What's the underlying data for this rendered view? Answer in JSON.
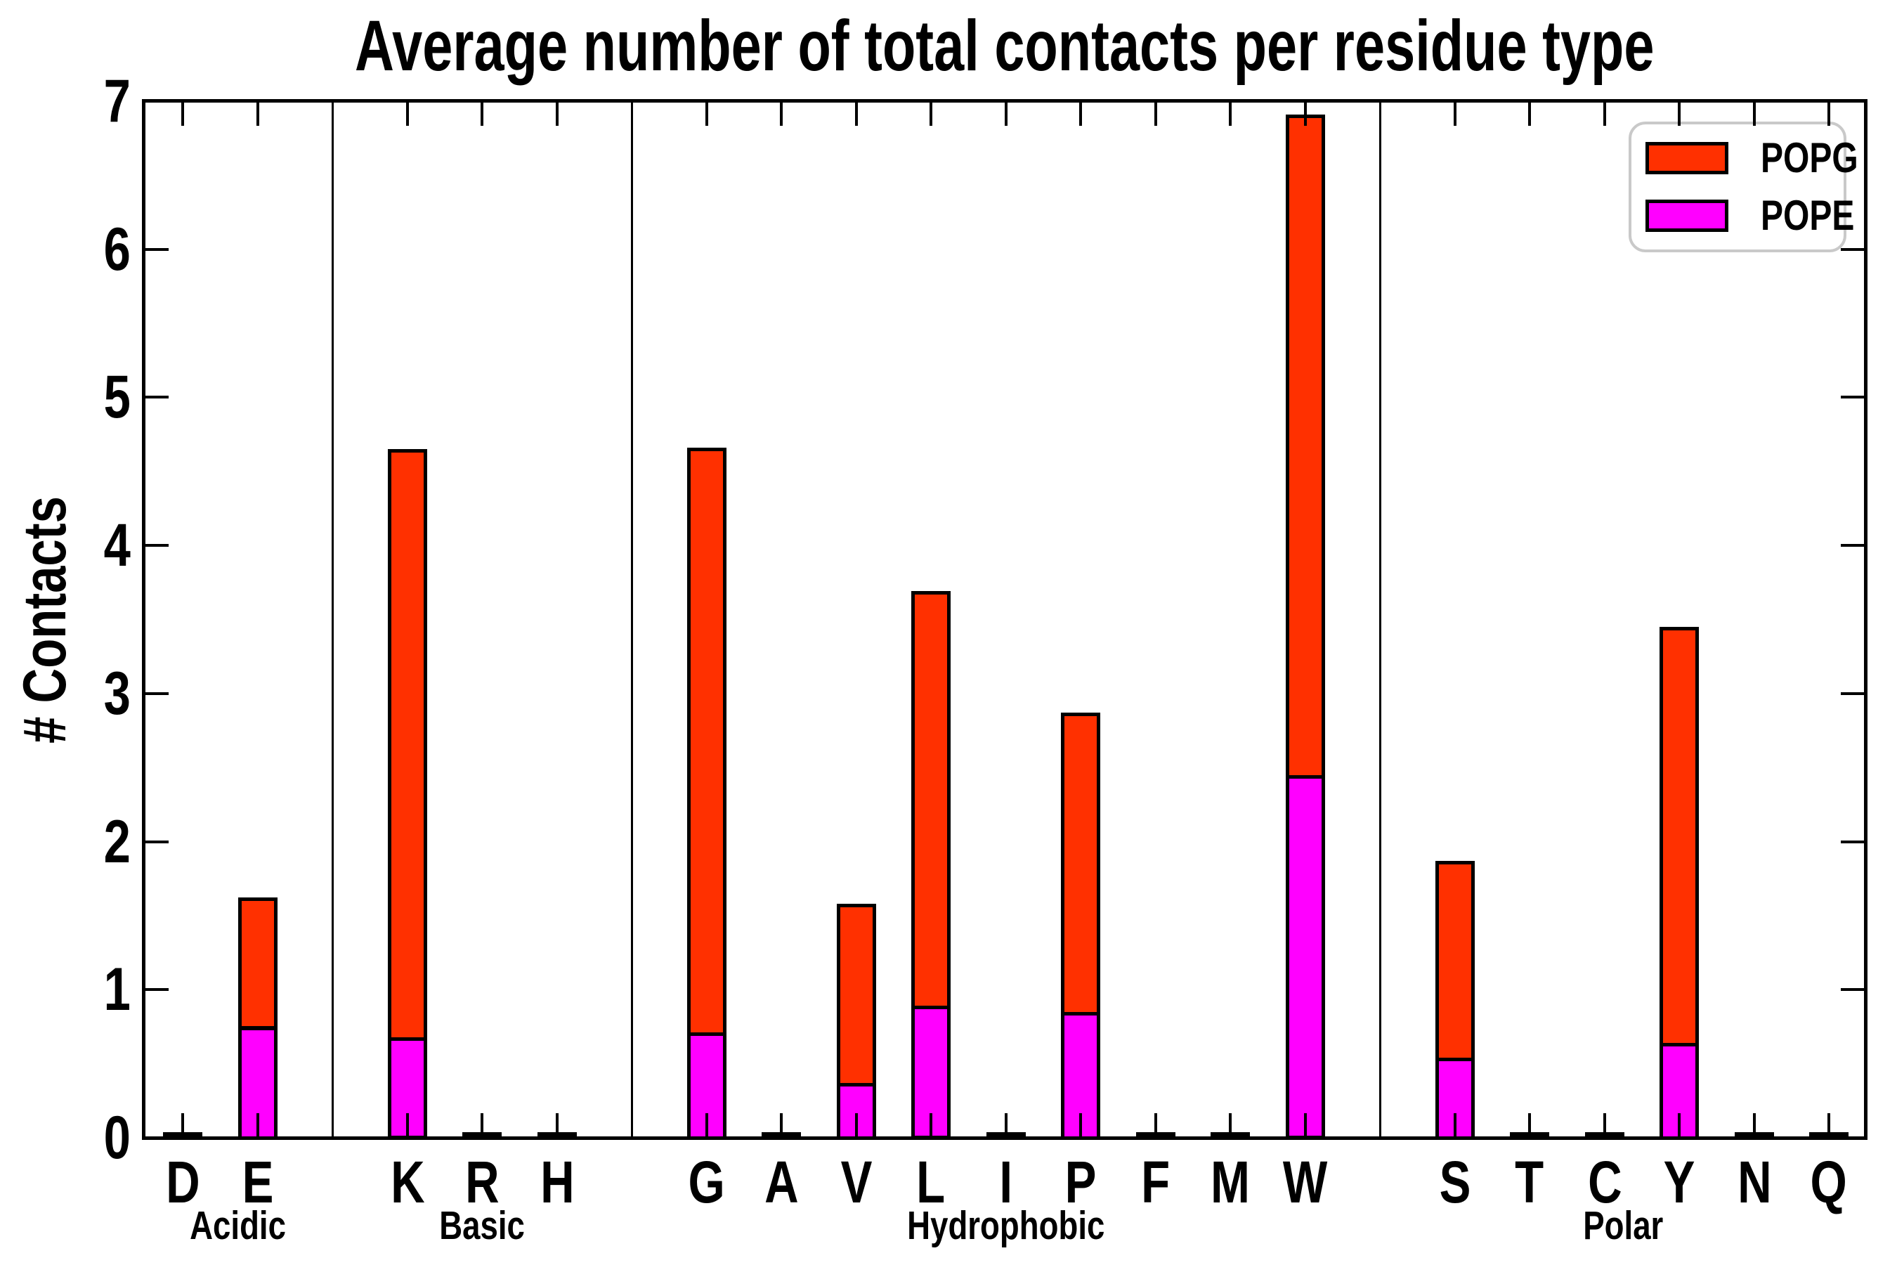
{
  "title": "Average number of total contacts per residue type",
  "ylabel": "# Contacts",
  "legend": {
    "position": "upper right",
    "entries": [
      {
        "label": "POPG",
        "color": "#ff3000"
      },
      {
        "label": "POPE",
        "color": "#ff00ff"
      }
    ]
  },
  "colors": {
    "POPG": "#ff3000",
    "POPE": "#ff00ff",
    "edge": "#000000",
    "background": "#ffffff"
  },
  "chart_data": {
    "type": "bar",
    "stacked": true,
    "title": "Average number of total contacts per residue type",
    "xlabel": "",
    "ylabel": "# Contacts",
    "ylim": [
      0,
      7
    ],
    "yticks": [
      0,
      1,
      2,
      3,
      4,
      5,
      6,
      7
    ],
    "grid": false,
    "legend_position": "upper right",
    "series_order_bottom_to_top": [
      "POPE",
      "POPG"
    ],
    "group_separators": true,
    "groups": [
      {
        "label": "Acidic",
        "residues": [
          {
            "code": "D",
            "POPE": 0.0,
            "POPG": 0.01
          },
          {
            "code": "E",
            "POPE": 0.74,
            "POPG": 0.87
          }
        ]
      },
      {
        "label": "Basic",
        "residues": [
          {
            "code": "K",
            "POPE": 0.67,
            "POPG": 3.97
          },
          {
            "code": "R",
            "POPE": 0.0,
            "POPG": 0.01
          },
          {
            "code": "H",
            "POPE": 0.0,
            "POPG": 0.01
          }
        ]
      },
      {
        "label": "Hydrophobic",
        "residues": [
          {
            "code": "G",
            "POPE": 0.7,
            "POPG": 3.95
          },
          {
            "code": "A",
            "POPE": 0.0,
            "POPG": 0.01
          },
          {
            "code": "V",
            "POPE": 0.36,
            "POPG": 1.21
          },
          {
            "code": "L",
            "POPE": 0.88,
            "POPG": 2.8
          },
          {
            "code": "I",
            "POPE": 0.0,
            "POPG": 0.01
          },
          {
            "code": "P",
            "POPE": 0.84,
            "POPG": 2.02
          },
          {
            "code": "F",
            "POPE": 0.0,
            "POPG": 0.01
          },
          {
            "code": "M",
            "POPE": 0.0,
            "POPG": 0.01
          },
          {
            "code": "W",
            "POPE": 2.44,
            "POPG": 4.46
          }
        ]
      },
      {
        "label": "Polar",
        "residues": [
          {
            "code": "S",
            "POPE": 0.53,
            "POPG": 1.33
          },
          {
            "code": "T",
            "POPE": 0.0,
            "POPG": 0.01
          },
          {
            "code": "C",
            "POPE": 0.0,
            "POPG": 0.01
          },
          {
            "code": "Y",
            "POPE": 0.63,
            "POPG": 2.81
          },
          {
            "code": "N",
            "POPE": 0.0,
            "POPG": 0.01
          },
          {
            "code": "Q",
            "POPE": 0.0,
            "POPG": 0.01
          }
        ]
      }
    ]
  }
}
